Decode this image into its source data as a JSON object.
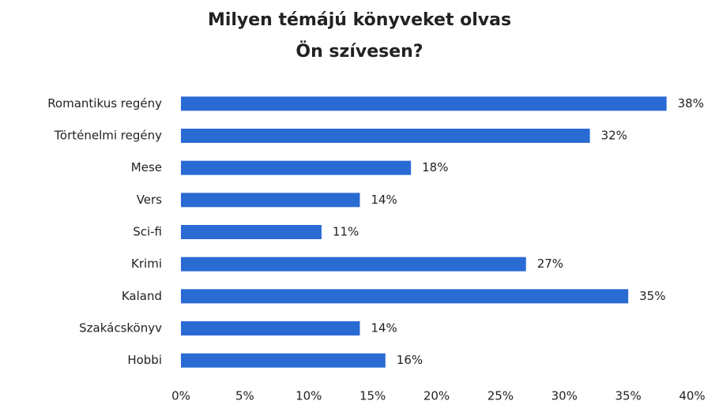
{
  "chart_data": {
    "type": "bar",
    "orientation": "horizontal",
    "title": "Milyen témájú könyveket olvas Ön szívesen?",
    "categories": [
      "Romantikus regény",
      "Történelmi regény",
      "Mese",
      "Vers",
      "Sci-fi",
      "Krimi",
      "Kaland",
      "Szakácskönyv",
      "Hobbi"
    ],
    "values": [
      38,
      32,
      18,
      14,
      11,
      27,
      35,
      14,
      16
    ],
    "value_labels": [
      "38%",
      "32%",
      "18%",
      "14%",
      "11%",
      "27%",
      "35%",
      "14%",
      "16%"
    ],
    "color": "#2a6ad3",
    "xlim": [
      0,
      40
    ],
    "xticks": [
      {
        "value": 0,
        "label": "0%"
      },
      {
        "value": 5,
        "label": "5%"
      },
      {
        "value": 10,
        "label": "10%"
      },
      {
        "value": 15,
        "label": "15%"
      },
      {
        "value": 20,
        "label": "20%"
      },
      {
        "value": 25,
        "label": "25%"
      },
      {
        "value": 30,
        "label": "30%"
      },
      {
        "value": 35,
        "label": "35%"
      },
      {
        "value": 40,
        "label": "40%"
      }
    ],
    "grid": false
  }
}
